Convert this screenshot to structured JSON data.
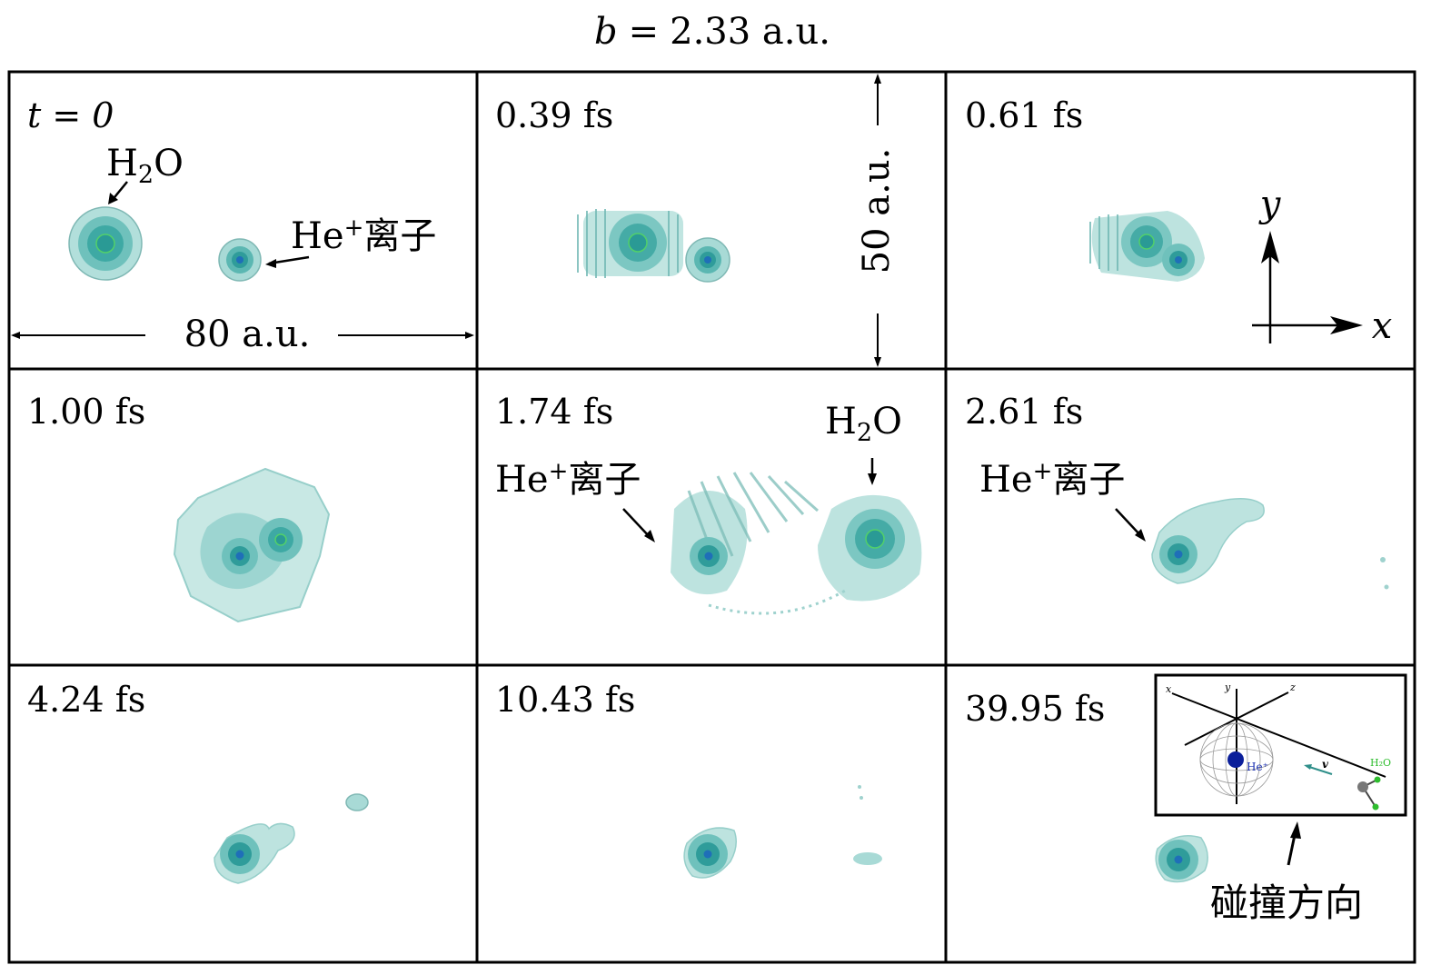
{
  "title": {
    "var": "b",
    "eq": "=",
    "value": "2.33 a.u."
  },
  "panels": [
    {
      "time": "t = 0"
    },
    {
      "time": "0.39 fs"
    },
    {
      "time": "0.61 fs"
    },
    {
      "time": "1.00 fs"
    },
    {
      "time": "1.74 fs"
    },
    {
      "time": "2.61 fs"
    },
    {
      "time": "4.24 fs"
    },
    {
      "time": "10.43 fs"
    },
    {
      "time": "39.95 fs"
    }
  ],
  "labels": {
    "h2o_main": "H",
    "h2o_sub": "2",
    "h2o_end": "O",
    "he_ion_base": "He",
    "he_ion_sup": "+",
    "he_ion_word": "离子",
    "width_scale": "80 a.u.",
    "height_scale": "50 a.u.",
    "axis_x": "x",
    "axis_y": "y",
    "collision_direction": "碰撞方向"
  },
  "inset": {
    "axis_x": "x",
    "axis_y": "y",
    "axis_z": "z",
    "he_label": "He⁺",
    "velocity_label": "v",
    "h2o_label": "H₂O"
  },
  "colors": {
    "cloud_outer": "#a7dcd7",
    "cloud_mid": "#5fb7b2",
    "cloud_core": "#2f9c9a",
    "he_core": "#1f6fb8",
    "h2o_core_outline": "#52d06a",
    "inset_he_ball": "#0b1f9a",
    "inset_h2o_green": "#2ebd2e"
  }
}
